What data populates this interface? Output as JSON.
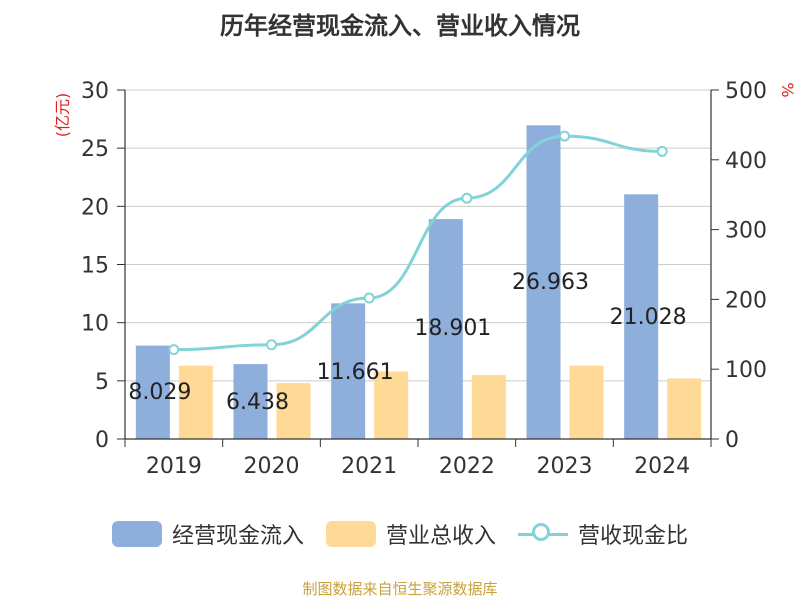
{
  "chart_data": {
    "type": "bar",
    "title": "历年经营现金流入、营业收入情况",
    "y_left_label": "(亿元)",
    "y_right_label": "%",
    "categories": [
      "2019",
      "2020",
      "2021",
      "2022",
      "2023",
      "2024"
    ],
    "y_left_ticks": [
      "0",
      "5",
      "10",
      "15",
      "20",
      "25",
      "30"
    ],
    "y_right_ticks": [
      "0",
      "100",
      "200",
      "300",
      "400",
      "500"
    ],
    "ylim_left": [
      0,
      30
    ],
    "ylim_right": [
      0,
      500
    ],
    "grid": true,
    "legend_position": "bottom",
    "series": [
      {
        "name": "经营现金流入",
        "type": "bar",
        "axis": "left",
        "color": "#8eaedb",
        "values": [
          8.029,
          6.438,
          11.661,
          18.901,
          26.963,
          21.028
        ],
        "labels": [
          "8.029",
          "6.438",
          "11.661",
          "18.901",
          "26.963",
          "21.028"
        ]
      },
      {
        "name": "营业总收入",
        "type": "bar",
        "axis": "left",
        "color": "#ffd996",
        "values": [
          6.3,
          4.8,
          5.8,
          5.5,
          6.3,
          5.2
        ]
      },
      {
        "name": "营收现金比",
        "type": "line",
        "axis": "right",
        "color": "#82d3d8",
        "values": [
          128,
          135,
          202,
          345,
          434,
          412
        ]
      }
    ]
  },
  "source": "制图数据来自恒生聚源数据库"
}
